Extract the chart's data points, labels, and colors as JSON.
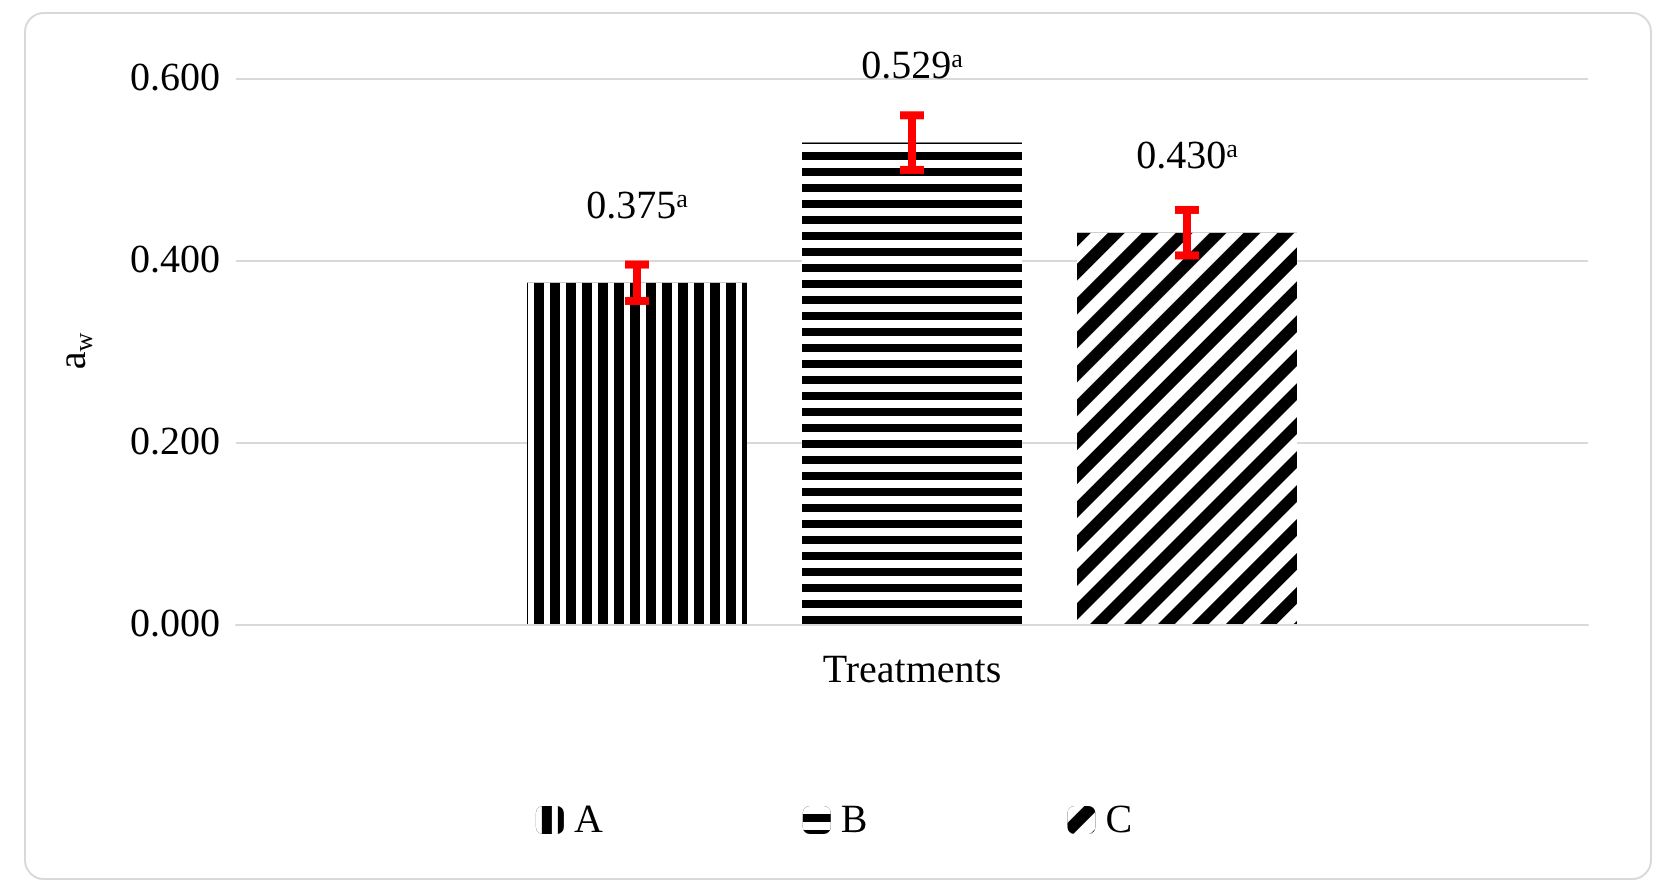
{
  "chart_data": {
    "type": "bar",
    "xlabel": "Treatments",
    "ylabel": "a$_{w}$",
    "categories": [
      null
    ],
    "series": [
      {
        "name": "A",
        "color": "#000000",
        "values": [
          0.375
        ],
        "errors": [
          0.02
        ],
        "value_labels": [
          "0.375$^{a}$"
        ]
      },
      {
        "name": "B",
        "color": "#000000",
        "values": [
          0.529
        ],
        "errors": [
          0.03
        ],
        "value_labels": [
          "0.529$^{a}$"
        ]
      },
      {
        "name": "C",
        "color": "#000000",
        "values": [
          0.43
        ],
        "errors": [
          0.025
        ],
        "value_labels": [
          "0.430$^{a}$"
        ]
      }
    ],
    "ylim": [
      0,
      0.6
    ],
    "yticks": [
      {
        "value": 0,
        "label": "0.000"
      },
      {
        "value": 0.2,
        "label": "0.200"
      },
      {
        "value": 0.4,
        "label": "0.400"
      },
      {
        "value": 0.6,
        "label": "0.600"
      }
    ],
    "grid": "y",
    "legend": "bottom"
  }
}
